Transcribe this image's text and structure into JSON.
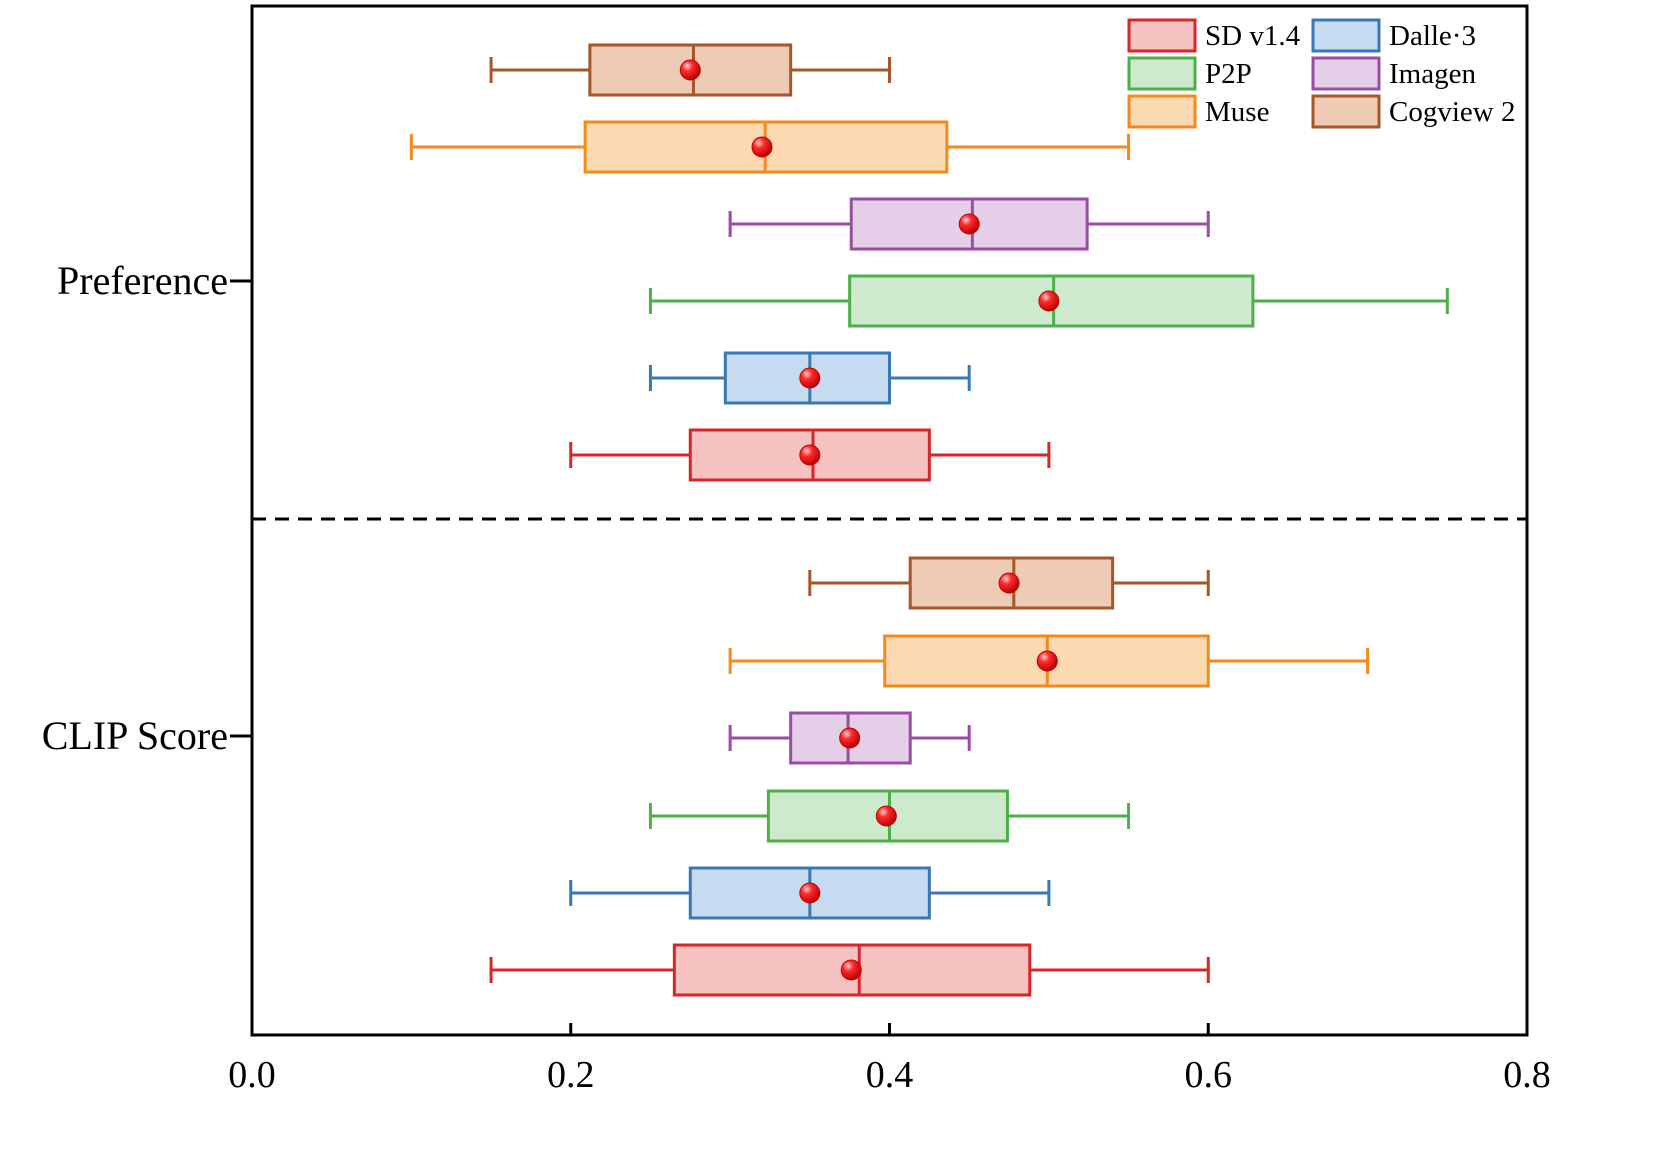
{
  "chart_data": {
    "type": "boxplot",
    "orientation": "horizontal",
    "xlim": [
      0.0,
      0.8
    ],
    "x_ticks": [
      "0.0",
      "0.2",
      "0.4",
      "0.6",
      "0.8"
    ],
    "x_tick_values": [
      0.0,
      0.2,
      0.4,
      0.6,
      0.8
    ],
    "grid": false,
    "legend_position": "top-right",
    "series": [
      {
        "name": "SD v1.4",
        "color": "#d62728",
        "fill": "#f6c1c1"
      },
      {
        "name": "Dalle·3",
        "color": "#3a78b5",
        "fill": "#c6dbef"
      },
      {
        "name": "P2P",
        "color": "#4daf4a",
        "fill": "#cdebcc"
      },
      {
        "name": "Imagen",
        "color": "#984ea3",
        "fill": "#e5cfe8"
      },
      {
        "name": "Muse",
        "color": "#f28a1c",
        "fill": "#fdd9b2"
      },
      {
        "name": "Cogview 2",
        "color": "#a65628",
        "fill": "#eecbb4"
      }
    ],
    "groups": [
      {
        "label": "Preference",
        "boxes": [
          {
            "series": "SD v1.4",
            "whisker_low": 0.2,
            "q1": 0.275,
            "median": 0.352,
            "q3": 0.425,
            "whisker_high": 0.5,
            "mean": 0.35
          },
          {
            "series": "Dalle·3",
            "whisker_low": 0.25,
            "q1": 0.297,
            "median": 0.35,
            "q3": 0.4,
            "whisker_high": 0.45,
            "mean": 0.35
          },
          {
            "series": "P2P",
            "whisker_low": 0.25,
            "q1": 0.375,
            "median": 0.503,
            "q3": 0.628,
            "whisker_high": 0.75,
            "mean": 0.5
          },
          {
            "series": "Imagen",
            "whisker_low": 0.3,
            "q1": 0.376,
            "median": 0.452,
            "q3": 0.524,
            "whisker_high": 0.6,
            "mean": 0.45
          },
          {
            "series": "Muse",
            "whisker_low": 0.1,
            "q1": 0.209,
            "median": 0.322,
            "q3": 0.436,
            "whisker_high": 0.55,
            "mean": 0.32
          },
          {
            "series": "Cogview 2",
            "whisker_low": 0.15,
            "q1": 0.212,
            "median": 0.277,
            "q3": 0.338,
            "whisker_high": 0.4,
            "mean": 0.275
          }
        ]
      },
      {
        "label": "CLIP Score",
        "boxes": [
          {
            "series": "SD v1.4",
            "whisker_low": 0.15,
            "q1": 0.265,
            "median": 0.381,
            "q3": 0.488,
            "whisker_high": 0.6,
            "mean": 0.376
          },
          {
            "series": "Dalle·3",
            "whisker_low": 0.2,
            "q1": 0.275,
            "median": 0.35,
            "q3": 0.425,
            "whisker_high": 0.5,
            "mean": 0.35
          },
          {
            "series": "P2P",
            "whisker_low": 0.25,
            "q1": 0.324,
            "median": 0.4,
            "q3": 0.474,
            "whisker_high": 0.55,
            "mean": 0.398
          },
          {
            "series": "Imagen",
            "whisker_low": 0.3,
            "q1": 0.338,
            "median": 0.374,
            "q3": 0.413,
            "whisker_high": 0.45,
            "mean": 0.375
          },
          {
            "series": "Muse",
            "whisker_low": 0.3,
            "q1": 0.397,
            "median": 0.499,
            "q3": 0.6,
            "whisker_high": 0.7,
            "mean": 0.499
          },
          {
            "series": "Cogview 2",
            "whisker_low": 0.35,
            "q1": 0.413,
            "median": 0.478,
            "q3": 0.54,
            "whisker_high": 0.6,
            "mean": 0.475
          }
        ]
      }
    ],
    "mean_marker_color": "#e31a1c",
    "separator": "dashed"
  }
}
